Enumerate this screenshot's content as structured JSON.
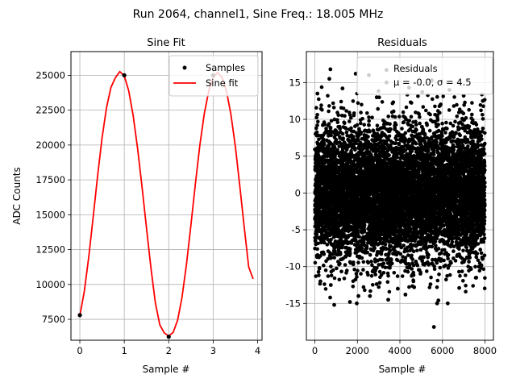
{
  "figure": {
    "suptitle": "Run 2064, channel1, Sine Freq.: 18.005 MHz"
  },
  "chart_data": [
    {
      "type": "line",
      "title": "Sine Fit",
      "xlabel": "Sample #",
      "ylabel": "ADC Counts",
      "xlim": [
        -0.2,
        4.1
      ],
      "ylim": [
        6000,
        26700
      ],
      "xticks": [
        0,
        1,
        2,
        3,
        4
      ],
      "yticks": [
        7500,
        10000,
        12500,
        15000,
        17500,
        20000,
        22500,
        25000
      ],
      "grid": true,
      "legend_position": "top-right",
      "series": [
        {
          "name": "Samples",
          "kind": "points",
          "color": "#000000",
          "x": [
            0,
            1,
            2,
            3
          ],
          "y": [
            7800,
            25000,
            6250,
            25000
          ]
        },
        {
          "name": "Sine fit",
          "kind": "line",
          "color": "#ff0000",
          "x": [
            0,
            0.1,
            0.2,
            0.3,
            0.4,
            0.5,
            0.6,
            0.7,
            0.8,
            0.9,
            1.0,
            1.1,
            1.2,
            1.3,
            1.4,
            1.5,
            1.6,
            1.7,
            1.8,
            1.9,
            2.0,
            2.1,
            2.2,
            2.3,
            2.4,
            2.5,
            2.6,
            2.7,
            2.8,
            2.9,
            3.0,
            3.1,
            3.2,
            3.3,
            3.4,
            3.5,
            3.6,
            3.7,
            3.8,
            3.9
          ],
          "y": [
            7742,
            9498,
            11954,
            14828,
            17788,
            20504,
            22668,
            24138,
            24828,
            25264,
            24962,
            23888,
            22114,
            19748,
            16984,
            14044,
            11182,
            8678,
            7100,
            6524,
            6301,
            6564,
            7434,
            9094,
            11450,
            14262,
            17212,
            19972,
            22240,
            23858,
            24826,
            25200,
            24850,
            23870,
            22190,
            19890,
            17050,
            14100,
            11250,
            10400
          ]
        }
      ]
    },
    {
      "type": "scatter",
      "title": "Residuals",
      "xlabel": "Sample #",
      "ylabel": "",
      "xlim": [
        -400,
        8400
      ],
      "ylim": [
        -20,
        19.2
      ],
      "xticks": [
        0,
        2000,
        4000,
        6000,
        8000
      ],
      "yticks": [
        -15,
        -10,
        -5,
        0,
        5,
        10,
        15
      ],
      "grid": true,
      "legend_position": "top-right",
      "color": "#000000",
      "n_points": 8000,
      "mean": 0.0,
      "sigma": 4.5,
      "legend": {
        "label": "Residuals",
        "stats": "μ = -0.0, σ = 4.5"
      },
      "outliers": [
        [
          3370,
          16.7
        ],
        [
          3370,
          15.0
        ],
        [
          1920,
          16.2
        ],
        [
          730,
          16.8
        ],
        [
          680,
          15.5
        ],
        [
          2540,
          16.0
        ],
        [
          5500,
          15.3
        ],
        [
          5600,
          -18.2
        ],
        [
          6250,
          -15.0
        ],
        [
          720,
          -14.2
        ],
        [
          750,
          -12.5
        ],
        [
          910,
          -15.2
        ],
        [
          1650,
          -14.8
        ],
        [
          1970,
          -15.0
        ],
        [
          2050,
          -14.0
        ],
        [
          2590,
          -14.0
        ],
        [
          3450,
          -14.5
        ],
        [
          4260,
          -13.8
        ],
        [
          5440,
          -12.4
        ],
        [
          5750,
          -15.0
        ],
        [
          5810,
          -14.6
        ],
        [
          6790,
          -12.9
        ],
        [
          7590,
          -11.5
        ],
        [
          3900,
          -13.0
        ],
        [
          4670,
          -12.8
        ],
        [
          120,
          13.5
        ],
        [
          1300,
          14.2
        ],
        [
          2910,
          13.0
        ],
        [
          4430,
          14.3
        ],
        [
          5050,
          13.7
        ],
        [
          6330,
          14.0
        ],
        [
          7000,
          13.2
        ],
        [
          7900,
          12.5
        ],
        [
          260,
          -12.0
        ],
        [
          3050,
          -12.2
        ]
      ]
    }
  ]
}
